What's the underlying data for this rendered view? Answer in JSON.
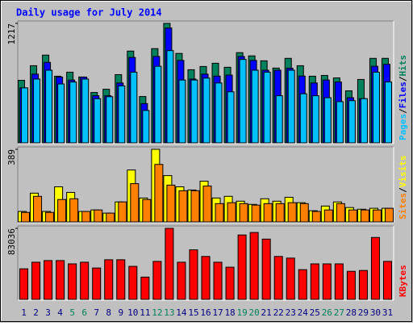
{
  "chart_data": [
    {
      "type": "bar",
      "title": "Daily usage for July 2014",
      "ylim": [
        0,
        1217
      ],
      "yticks": [
        1217
      ],
      "legend_separator": "/",
      "series": [
        {
          "name": "Hits",
          "color": "#00805c",
          "values": [
            637,
            786,
            894,
            679,
            720,
            671,
            513,
            546,
            695,
            935,
            472,
            960,
            1217,
            911,
            745,
            778,
            811,
            770,
            919,
            886,
            836,
            762,
            861,
            786,
            679,
            687,
            662,
            530,
            646,
            861,
            861
          ]
        },
        {
          "name": "Files",
          "color": "#0000ff",
          "values": [
            560,
            700,
            820,
            670,
            640,
            670,
            480,
            480,
            610,
            870,
            400,
            880,
            1170,
            840,
            650,
            700,
            680,
            690,
            880,
            840,
            740,
            740,
            760,
            680,
            610,
            640,
            620,
            460,
            450,
            780,
            800
          ]
        },
        {
          "name": "Pages",
          "color": "#00c0ff",
          "values": [
            560,
            650,
            740,
            600,
            620,
            650,
            450,
            470,
            580,
            720,
            330,
            780,
            940,
            640,
            640,
            660,
            610,
            520,
            850,
            740,
            720,
            480,
            740,
            500,
            480,
            460,
            420,
            430,
            450,
            720,
            620
          ]
        }
      ]
    },
    {
      "type": "bar",
      "ylim": [
        0,
        389
      ],
      "yticks": [
        389
      ],
      "legend_separator": "/",
      "series": [
        {
          "name": "Visits",
          "color": "#ffff00",
          "values": [
            56,
            154,
            56,
            188,
            158,
            56,
            64,
            47,
            107,
            278,
            128,
            389,
            248,
            188,
            171,
            218,
            128,
            137,
            111,
            94,
            124,
            111,
            132,
            103,
            60,
            85,
            107,
            77,
            68,
            73,
            73
          ]
        },
        {
          "name": "Sites",
          "color": "#ff8000",
          "values": [
            51,
            137,
            51,
            120,
            124,
            56,
            64,
            47,
            107,
            205,
            120,
            308,
            197,
            167,
            167,
            192,
            98,
            103,
            98,
            90,
            98,
            98,
            103,
            98,
            56,
            64,
            98,
            64,
            64,
            64,
            73
          ]
        }
      ]
    },
    {
      "type": "bar",
      "ylim": [
        0,
        83036
      ],
      "yticks": [
        83036
      ],
      "categories": [
        "1",
        "2",
        "3",
        "4",
        "5",
        "6",
        "7",
        "8",
        "9",
        "10",
        "11",
        "12",
        "13",
        "14",
        "15",
        "16",
        "17",
        "18",
        "19",
        "20",
        "21",
        "22",
        "23",
        "24",
        "25",
        "26",
        "27",
        "28",
        "29",
        "30",
        "31"
      ],
      "category_colors": [
        "#000080",
        "#000080",
        "#000080",
        "#000080",
        "#00805c",
        "#00805c",
        "#000080",
        "#000080",
        "#000080",
        "#000080",
        "#000080",
        "#00805c",
        "#00805c",
        "#000080",
        "#000080",
        "#000080",
        "#000080",
        "#000080",
        "#00805c",
        "#00805c",
        "#000080",
        "#000080",
        "#000080",
        "#000080",
        "#000080",
        "#00805c",
        "#00805c",
        "#000080",
        "#000080",
        "#000080",
        "#000080"
      ],
      "series": [
        {
          "name": "KBytes",
          "color": "#ff0000",
          "values": [
            35724,
            43449,
            45380,
            45380,
            41518,
            43449,
            36689,
            46345,
            46345,
            38620,
            26069,
            44415,
            83036,
            43449,
            57931,
            50207,
            43449,
            37655,
            75312,
            78208,
            70484,
            50207,
            48276,
            34759,
            41518,
            41518,
            41518,
            32828,
            33793,
            72415,
            44415
          ]
        }
      ]
    }
  ]
}
